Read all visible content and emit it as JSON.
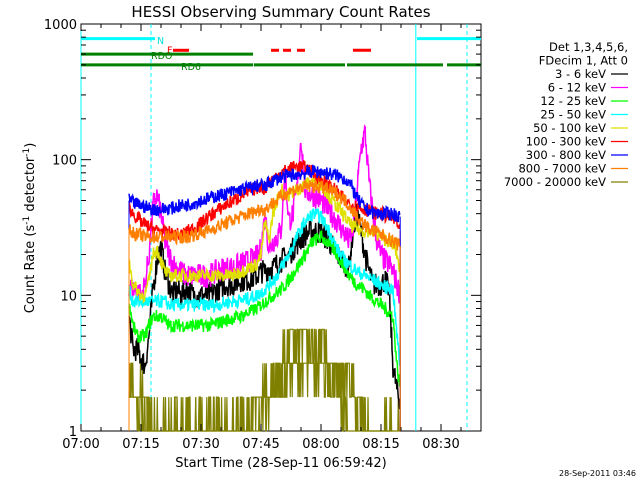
{
  "chart_data": {
    "type": "line",
    "title": "HESSI Observing Summary Count Rates",
    "xlabel": "Start Time (28-Sep-11 06:59:42)",
    "ylabel": "Count Rate (s",
    "ylabel_sup": "-1",
    "ylabel_mid": " detector",
    "ylabel_sup2": "-1",
    "ylabel_end": ")",
    "y_scale": "log",
    "xlim": [
      0,
      100
    ],
    "ylim": [
      1,
      1000
    ],
    "x_ticks": [
      {
        "x": 0,
        "label": "07:00"
      },
      {
        "x": 15,
        "label": "07:15"
      },
      {
        "x": 30,
        "label": "07:30"
      },
      {
        "x": 45,
        "label": "07:45"
      },
      {
        "x": 60,
        "label": "08:00"
      },
      {
        "x": 75,
        "label": "08:15"
      },
      {
        "x": 90,
        "label": "08:30"
      }
    ],
    "y_ticks": [
      {
        "y": 1,
        "label": "1"
      },
      {
        "y": 10,
        "label": "10"
      },
      {
        "y": 100,
        "label": "100"
      },
      {
        "y": 1000,
        "label": "1000"
      }
    ],
    "legend_header": [
      "Det 1,3,4,5,6,",
      "FDecim 1, Att 0"
    ],
    "legend_placement": "right",
    "timestamp": "28-Sep-2011 03:46",
    "vlines": [
      {
        "x": 0,
        "style": "solid",
        "color": "#00ffff"
      },
      {
        "x": 17.5,
        "style": "dashed",
        "color": "#00ffff"
      },
      {
        "x": 83.7,
        "style": "solid",
        "color": "#00ffff"
      },
      {
        "x": 96.5,
        "style": "dashed",
        "color": "#00ffff"
      }
    ],
    "flags": [
      {
        "label": "N",
        "label_color": "#00e0e0",
        "color": "#00ffff",
        "y": 780,
        "segments": [
          [
            0,
            18.5
          ],
          [
            84,
            100
          ]
        ]
      },
      {
        "label": "F",
        "label_color": "#ff0000",
        "color": "#ff0000",
        "y": 640,
        "segments": [
          [
            23,
            27
          ],
          [
            47.5,
            49.5
          ],
          [
            50.5,
            52.5
          ],
          [
            54,
            56
          ],
          [
            68,
            72.5
          ]
        ]
      },
      {
        "label": "RDO",
        "label_color": "#008000",
        "color": "#008000",
        "y": 600,
        "segments": [
          [
            0,
            43
          ]
        ]
      },
      {
        "label": "RD6",
        "label_color": "#008000",
        "color": "#008000",
        "y": 500,
        "segments": [
          [
            0,
            43
          ],
          [
            43.2,
            66
          ],
          [
            66.5,
            90.5
          ],
          [
            91.5,
            100
          ]
        ]
      }
    ],
    "series": [
      {
        "name": "3 - 6 keV",
        "color": "#000000",
        "x": [
          12,
          13,
          14,
          15,
          16,
          17,
          18,
          19,
          20,
          21,
          22,
          23,
          24,
          25,
          26,
          27,
          28,
          30,
          32,
          34,
          36,
          38,
          40,
          42,
          44,
          45,
          46,
          47,
          48,
          49,
          50,
          52,
          54,
          56,
          58,
          60,
          62,
          64,
          66,
          67,
          68,
          69,
          70,
          71,
          72,
          73,
          74,
          75,
          76,
          77,
          78,
          79,
          79.8
        ],
        "y": [
          7,
          4,
          4,
          3.5,
          3,
          5,
          11,
          18,
          23,
          15,
          12,
          10,
          11,
          10,
          11,
          11,
          10,
          10,
          10,
          11,
          12,
          12,
          13,
          13,
          14,
          15,
          15,
          16,
          16,
          17,
          18,
          20,
          24,
          28,
          30,
          29,
          25,
          20,
          17,
          16,
          30,
          40,
          30,
          20,
          15,
          12,
          12,
          12,
          13,
          11,
          3,
          2,
          1.5
        ]
      },
      {
        "name": "6 - 12 keV",
        "color": "#ff00ff",
        "x": [
          12,
          13,
          14,
          15,
          16,
          17,
          18,
          19,
          20,
          21,
          22,
          23,
          24,
          25,
          26,
          27,
          28,
          30,
          32,
          34,
          36,
          38,
          40,
          42,
          44,
          45,
          46,
          47,
          48,
          49,
          50,
          51,
          52,
          53,
          54,
          55,
          56,
          58,
          60,
          62,
          64,
          66,
          67,
          68,
          69,
          70,
          71,
          72,
          73,
          74,
          75,
          76,
          77,
          78,
          79,
          79.8
        ],
        "y": [
          12,
          11,
          11,
          10,
          12,
          20,
          45,
          55,
          40,
          25,
          20,
          17,
          16,
          15,
          14,
          14,
          14,
          14,
          14,
          15,
          16,
          16,
          17,
          18,
          19,
          22,
          40,
          22,
          25,
          27,
          30,
          80,
          35,
          40,
          60,
          150,
          60,
          55,
          50,
          42,
          35,
          28,
          25,
          30,
          60,
          120,
          160,
          70,
          40,
          25,
          20,
          18,
          17,
          15,
          12,
          10
        ]
      },
      {
        "name": "12 - 25 keV",
        "color": "#00ff00",
        "x": [
          12,
          13,
          14,
          15,
          16,
          17,
          18,
          19,
          20,
          21,
          22,
          23,
          24,
          25,
          26,
          27,
          28,
          30,
          32,
          34,
          36,
          38,
          40,
          42,
          44,
          45,
          46,
          47,
          48,
          49,
          50,
          52,
          54,
          56,
          58,
          60,
          62,
          64,
          66,
          67,
          68,
          69,
          70,
          71,
          72,
          73,
          74,
          75,
          76,
          77,
          78,
          79,
          79.8
        ],
        "y": [
          9,
          6,
          5,
          5,
          5,
          6,
          7,
          7,
          7,
          6.5,
          6,
          6,
          6,
          6,
          6,
          6,
          6,
          6,
          6,
          6.2,
          6.5,
          6.8,
          7,
          7.5,
          8,
          8.5,
          9,
          9.5,
          10,
          10.5,
          11,
          13,
          16,
          20,
          25,
          27,
          24,
          20,
          16,
          14,
          13,
          12,
          11.5,
          11,
          10,
          9.5,
          9,
          8.5,
          8,
          7.5,
          7,
          3,
          2
        ]
      },
      {
        "name": "25 - 50 keV",
        "color": "#00ffff",
        "x": [
          12,
          13,
          14,
          15,
          16,
          17,
          18,
          19,
          20,
          21,
          22,
          23,
          24,
          25,
          26,
          27,
          28,
          30,
          32,
          34,
          36,
          38,
          40,
          42,
          44,
          45,
          46,
          47,
          48,
          49,
          50,
          52,
          54,
          56,
          58,
          60,
          62,
          64,
          66,
          67,
          68,
          69,
          70,
          71,
          72,
          73,
          74,
          75,
          76,
          77,
          78,
          79,
          79.8
        ],
        "y": [
          11,
          9,
          9,
          9,
          9,
          9,
          9,
          9,
          9,
          9,
          8.5,
          8.5,
          8.5,
          8.5,
          8.5,
          8.5,
          8.5,
          8.5,
          8.5,
          8.5,
          8.8,
          9,
          9.2,
          9.5,
          10,
          10.5,
          11,
          12,
          13,
          14,
          16,
          20,
          27,
          35,
          40,
          38,
          30,
          22,
          18,
          17,
          16,
          15,
          14.5,
          14,
          13.5,
          13,
          12.5,
          12,
          11.5,
          11.5,
          11,
          5,
          3
        ]
      },
      {
        "name": "50 - 100 keV",
        "color": "#e0e000",
        "x": [
          12,
          13,
          14,
          15,
          16,
          17,
          18,
          19,
          20,
          21,
          22,
          23,
          24,
          25,
          26,
          27,
          28,
          30,
          32,
          34,
          36,
          38,
          40,
          42,
          44,
          45,
          46,
          47,
          48,
          49,
          50,
          52,
          54,
          56,
          58,
          60,
          62,
          64,
          66,
          67,
          68,
          69,
          70,
          71,
          72,
          73,
          74,
          75,
          76,
          77,
          78,
          79,
          79.8
        ],
        "y": [
          18,
          12,
          11,
          10,
          10,
          13,
          20,
          22,
          18,
          15,
          14,
          14,
          14,
          14,
          14,
          14,
          14,
          14,
          14,
          14,
          14,
          14,
          15,
          16,
          17,
          20,
          35,
          25,
          40,
          50,
          60,
          55,
          60,
          65,
          70,
          65,
          55,
          45,
          38,
          34,
          32,
          31,
          30,
          30,
          30,
          29,
          28,
          27,
          26,
          25,
          24,
          20,
          15
        ]
      },
      {
        "name": "100 - 300 keV",
        "color": "#ff0000",
        "x": [
          12,
          13,
          14,
          15,
          16,
          17,
          18,
          19,
          20,
          21,
          22,
          23,
          24,
          25,
          26,
          27,
          28,
          30,
          32,
          34,
          36,
          38,
          40,
          42,
          44,
          45,
          46,
          47,
          48,
          49,
          50,
          52,
          54,
          56,
          58,
          60,
          62,
          64,
          66,
          67,
          68,
          69,
          70,
          71,
          72,
          73,
          74,
          75,
          76,
          77,
          78,
          79,
          79.8
        ],
        "y": [
          45,
          40,
          37,
          35,
          33,
          32,
          31,
          30,
          30,
          29,
          29,
          28,
          28,
          28,
          29,
          30,
          31,
          34,
          38,
          42,
          46,
          50,
          54,
          58,
          62,
          64,
          60,
          68,
          72,
          76,
          80,
          85,
          90,
          88,
          80,
          72,
          65,
          58,
          50,
          48,
          46,
          45,
          44,
          43,
          42,
          41,
          40,
          40,
          39,
          38,
          37,
          34,
          30
        ]
      },
      {
        "name": "300 - 800 keV",
        "color": "#0000ff",
        "x": [
          12,
          13,
          14,
          15,
          16,
          17,
          18,
          19,
          20,
          21,
          22,
          23,
          24,
          25,
          26,
          27,
          28,
          30,
          32,
          34,
          36,
          38,
          40,
          42,
          44,
          45,
          46,
          47,
          48,
          49,
          50,
          52,
          54,
          56,
          58,
          60,
          62,
          64,
          66,
          67,
          68,
          69,
          70,
          71,
          72,
          73,
          74,
          75,
          76,
          77,
          78,
          79,
          79.8
        ],
        "y": [
          50,
          48,
          47,
          46,
          45,
          44,
          43,
          43,
          43,
          43,
          44,
          44,
          45,
          46,
          46,
          47,
          48,
          50,
          52,
          54,
          56,
          58,
          60,
          62,
          64,
          66,
          62,
          68,
          70,
          72,
          74,
          76,
          78,
          80,
          82,
          81,
          79,
          76,
          72,
          68,
          60,
          52,
          47,
          44,
          42,
          41,
          40,
          40,
          40,
          40,
          40,
          39,
          38
        ]
      },
      {
        "name": "800 - 7000 keV",
        "color": "#ff8000",
        "x": [
          12,
          13,
          14,
          15,
          16,
          17,
          18,
          19,
          20,
          21,
          22,
          23,
          24,
          25,
          26,
          27,
          28,
          30,
          32,
          34,
          36,
          38,
          40,
          42,
          44,
          45,
          46,
          47,
          48,
          49,
          50,
          52,
          54,
          56,
          58,
          60,
          62,
          64,
          66,
          67,
          68,
          69,
          70,
          71,
          72,
          73,
          74,
          75,
          76,
          77,
          78,
          79,
          79.8
        ],
        "y": [
          30,
          29,
          28,
          28,
          27,
          27,
          27,
          27,
          27,
          27,
          27,
          27,
          27,
          27,
          27,
          27,
          28,
          29,
          30,
          32,
          34,
          36,
          38,
          40,
          42,
          44,
          42,
          46,
          48,
          50,
          54,
          58,
          61,
          63,
          64,
          63,
          60,
          56,
          50,
          46,
          42,
          38,
          35,
          33,
          31,
          30,
          29,
          28,
          27,
          26,
          25,
          24,
          23
        ]
      },
      {
        "name": "7000 - 20000 keV",
        "color": "#808000",
        "x": [
          12,
          13,
          14,
          15,
          16,
          17,
          18,
          19,
          20,
          21,
          22,
          23,
          24,
          25,
          26,
          27,
          28,
          30,
          32,
          34,
          36,
          38,
          40,
          42,
          44,
          45,
          46,
          47,
          48,
          49,
          50,
          52,
          54,
          56,
          58,
          60,
          62,
          64,
          66,
          67,
          68,
          69,
          70,
          71,
          72,
          73,
          74,
          75,
          76,
          77,
          78,
          79,
          79.8
        ],
        "y": [
          3,
          2,
          1.5,
          2,
          1.5,
          1,
          1,
          1,
          1,
          1,
          1,
          1,
          1.5,
          1,
          1,
          1.5,
          1,
          1,
          1,
          1.5,
          1,
          1,
          1.5,
          1,
          1.5,
          1.5,
          2,
          1.5,
          2,
          2.5,
          3,
          4,
          4.5,
          5,
          4.5,
          4,
          3.5,
          3,
          2.5,
          2,
          2,
          1.5,
          1.5,
          1,
          1,
          1,
          1,
          1,
          1,
          1,
          1,
          1,
          1
        ]
      }
    ],
    "overlay_series": [
      {
        "name_ref": 8,
        "color": "#808000",
        "x": [
          12,
          14,
          16,
          18,
          20,
          22,
          24,
          26,
          28,
          30,
          32,
          34,
          36,
          38,
          40,
          42,
          44,
          46,
          48,
          50,
          52,
          54,
          56,
          58,
          60,
          62,
          64,
          66,
          68,
          70,
          72,
          74,
          76,
          78
        ],
        "y": [
          2,
          1.5,
          1.5,
          1,
          1,
          1,
          1,
          1,
          1,
          1,
          1,
          1,
          1,
          1,
          1,
          1,
          1,
          1.5,
          2,
          2,
          2.5,
          3,
          3,
          3,
          3,
          2.5,
          2,
          1.5,
          1,
          1,
          1,
          1,
          1,
          1
        ]
      }
    ]
  }
}
